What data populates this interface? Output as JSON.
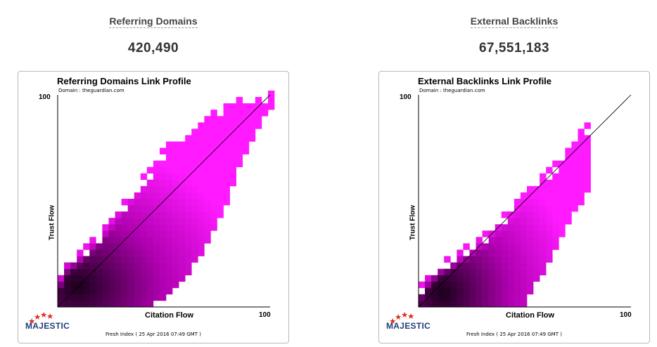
{
  "panels": [
    {
      "metric_title": "Referring Domains",
      "metric_value": "420,490",
      "plot_title": "Referring Domains Link Profile",
      "domain_label": "Domain : theguardian.com",
      "y_axis_label": "Trust Flow",
      "x_axis_label": "Citation Flow",
      "y_max_tick": "100",
      "x_max_tick": "100",
      "logo_text": "MAJESTIC",
      "footer": "Fresh Index ( 25 Apr 2016 07:49 GMT )"
    },
    {
      "metric_title": "External Backlinks",
      "metric_value": "67,551,183",
      "plot_title": "External Backlinks Link Profile",
      "domain_label": "Domain : theguardian.com",
      "y_axis_label": "Trust Flow",
      "x_axis_label": "Citation Flow",
      "y_max_tick": "100",
      "x_max_tick": "100",
      "logo_text": "MAJESTIC",
      "footer": "Fresh Index ( 25 Apr 2016 07:49 GMT )"
    }
  ],
  "colors": {
    "point_light": "#ff1aff",
    "point_mid": "#b000b0",
    "point_dark": "#1a001a",
    "logo_blue": "#1f3f7a",
    "logo_star": "#e0301e"
  },
  "chart_data": [
    {
      "type": "heatmap",
      "title": "Referring Domains Link Profile",
      "xlabel": "Citation Flow",
      "ylabel": "Trust Flow",
      "xlim": [
        0,
        100
      ],
      "ylim": [
        0,
        100
      ],
      "diagonal_reference_line": true,
      "density_envelope": {
        "x": [
          0,
          5,
          10,
          20,
          30,
          40,
          50,
          60,
          70,
          80,
          90,
          100
        ],
        "trust_flow_upper": [
          12,
          22,
          25,
          35,
          48,
          60,
          73,
          82,
          88,
          94,
          98,
          100
        ],
        "trust_flow_lower": [
          0,
          0,
          0,
          0,
          0,
          0,
          5,
          15,
          30,
          52,
          78,
          95
        ]
      },
      "max_density_at": {
        "citation_flow": 8,
        "trust_flow": 8
      }
    },
    {
      "type": "heatmap",
      "title": "External Backlinks Link Profile",
      "xlabel": "Citation Flow",
      "ylabel": "Trust Flow",
      "xlim": [
        0,
        100
      ],
      "ylim": [
        0,
        100
      ],
      "diagonal_reference_line": true,
      "density_envelope": {
        "x": [
          0,
          5,
          10,
          20,
          30,
          40,
          50,
          60,
          70,
          80
        ],
        "trust_flow_upper": [
          8,
          15,
          20,
          26,
          33,
          42,
          52,
          62,
          74,
          85
        ],
        "trust_flow_lower": [
          0,
          0,
          0,
          0,
          0,
          0,
          3,
          20,
          40,
          55
        ]
      },
      "max_density_at": {
        "citation_flow": 10,
        "trust_flow": 5
      }
    }
  ]
}
